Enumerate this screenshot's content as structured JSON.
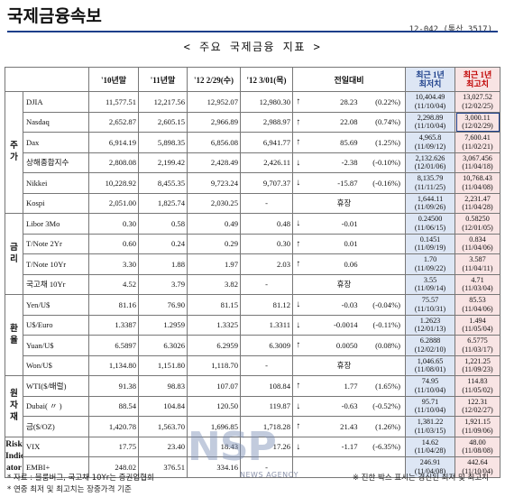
{
  "header": {
    "title": "국제금융속보",
    "issue": "12-042 (통산 3517)",
    "subtitle": "< 주요 국제금융 지표 >"
  },
  "columns": {
    "y10": "'10년말",
    "y11": "'11년말",
    "d229": "'12 2/29(수)",
    "d301": "'12 3/01(목)",
    "change": "전일대비",
    "low": "최근 1년\n최저치",
    "high": "최근 1년\n최고치"
  },
  "groups": {
    "stock": "주\n가",
    "rate": "금\n리",
    "fx": "환\n율",
    "commodity": "원\n자\n재",
    "risk": "Risk\nIndic\nator"
  },
  "rows": [
    {
      "name": "DJIA",
      "y10": "11,577.51",
      "y11": "12,217.56",
      "d229": "12,952.07",
      "d301": "12,980.30",
      "dir": "↑",
      "chg": "28.23",
      "pct": "(0.22%)",
      "low": "10,404.49\n(11/10/04)",
      "high": "13,027.52\n(12/02/25)"
    },
    {
      "name": "Nasdaq",
      "y10": "2,652.87",
      "y11": "2,605.15",
      "d229": "2,966.89",
      "d301": "2,988.97",
      "dir": "↑",
      "chg": "22.08",
      "pct": "(0.74%)",
      "low": "2,298.89\n(11/10/04)",
      "high": "3,000.11\n(12/02/29)",
      "hl": true
    },
    {
      "name": "Dax",
      "y10": "6,914.19",
      "y11": "5,898.35",
      "d229": "6,856.08",
      "d301": "6,941.77",
      "dir": "↑",
      "chg": "85.69",
      "pct": "(1.25%)",
      "low": "4,965.8\n(11/09/12)",
      "high": "7,600.41\n(11/02/21)"
    },
    {
      "name": "상해종합지수",
      "y10": "2,808.08",
      "y11": "2,199.42",
      "d229": "2,428.49",
      "d301": "2,426.11",
      "dir": "↓",
      "chg": "-2.38",
      "pct": "(-0.10%)",
      "low": "2,132.626\n(12/01/06)",
      "high": "3,067.456\n(11/04/18)"
    },
    {
      "name": "Nikkei",
      "y10": "10,228.92",
      "y11": "8,455.35",
      "d229": "9,723.24",
      "d301": "9,707.37",
      "dir": "↓",
      "chg": "-15.87",
      "pct": "(-0.16%)",
      "low": "8,135.79\n(11/11/25)",
      "high": "10,768.43\n(11/04/08)"
    },
    {
      "name": "Kospi",
      "y10": "2,051.00",
      "y11": "1,825.74",
      "d229": "2,030.25",
      "d301": "-",
      "dir": "",
      "chg": "휴장",
      "pct": "",
      "low": "1,644.11\n(11/09/26)",
      "high": "2,231.47\n(11/04/28)"
    },
    {
      "name": "Libor 3Mo",
      "y10": "0.30",
      "y11": "0.58",
      "d229": "0.49",
      "d301": "0.48",
      "dir": "↓",
      "chg": "-0.01",
      "pct": "",
      "low": "0.24500\n(11/06/15)",
      "high": "0.58250\n(12/01/05)"
    },
    {
      "name": "T/Note 2Yr",
      "y10": "0.60",
      "y11": "0.24",
      "d229": "0.29",
      "d301": "0.30",
      "dir": "↑",
      "chg": "0.01",
      "pct": "",
      "low": "0.1451\n(11/09/19)",
      "high": "0.834\n(11/04/06)"
    },
    {
      "name": "T/Note 10Yr",
      "y10": "3.30",
      "y11": "1.88",
      "d229": "1.97",
      "d301": "2.03",
      "dir": "↑",
      "chg": "0.06",
      "pct": "",
      "low": "1.70\n(11/09/22)",
      "high": "3.587\n(11/04/11)"
    },
    {
      "name": "국고채 10Yr",
      "y10": "4.52",
      "y11": "3.79",
      "d229": "3.82",
      "d301": "-",
      "dir": "",
      "chg": "휴장",
      "pct": "",
      "low": "3.55\n(11/09/14)",
      "high": "4.71\n(11/03/04)"
    },
    {
      "name": "Yen/U$",
      "y10": "81.16",
      "y11": "76.90",
      "d229": "81.15",
      "d301": "81.12",
      "dir": "↓",
      "chg": "-0.03",
      "pct": "(-0.04%)",
      "low": "75.57\n(11/10/31)",
      "high": "85.53\n(11/04/06)"
    },
    {
      "name": "U$/Euro",
      "y10": "1.3387",
      "y11": "1.2959",
      "d229": "1.3325",
      "d301": "1.3311",
      "dir": "↓",
      "chg": "-0.0014",
      "pct": "(-0.11%)",
      "low": "1.2623\n(12/01/13)",
      "high": "1.494\n(11/05/04)"
    },
    {
      "name": "Yuan/U$",
      "y10": "6.5897",
      "y11": "6.3026",
      "d229": "6.2959",
      "d301": "6.3009",
      "dir": "↑",
      "chg": "0.0050",
      "pct": "(0.08%)",
      "low": "6.2888\n(12/02/10)",
      "high": "6.5775\n(11/03/17)"
    },
    {
      "name": "Won/U$",
      "y10": "1,134.80",
      "y11": "1,151.80",
      "d229": "1,118.70",
      "d301": "-",
      "dir": "",
      "chg": "휴장",
      "pct": "",
      "low": "1,046.65\n(11/08/01)",
      "high": "1,221.25\n(11/09/23)"
    },
    {
      "name": "WTI($/배럴)",
      "y10": "91.38",
      "y11": "98.83",
      "d229": "107.07",
      "d301": "108.84",
      "dir": "↑",
      "chg": "1.77",
      "pct": "(1.65%)",
      "low": "74.95\n(11/10/04)",
      "high": "114.83\n(11/05/02)"
    },
    {
      "name": "Dubai(   〃   )",
      "y10": "88.54",
      "y11": "104.84",
      "d229": "120.50",
      "d301": "119.87",
      "dir": "↓",
      "chg": "-0.63",
      "pct": "(-0.52%)",
      "low": "95.71\n(11/10/04)",
      "high": "122.31\n(12/02/27)"
    },
    {
      "name": "금($/OZ)",
      "y10": "1,420.78",
      "y11": "1,563.70",
      "d229": "1,696.85",
      "d301": "1,718.28",
      "dir": "↑",
      "chg": "21.43",
      "pct": "(1.26%)",
      "low": "1,381.22\n(11/03/15)",
      "high": "1,921.15\n(11/09/06)"
    },
    {
      "name": "VIX",
      "y10": "17.75",
      "y11": "23.40",
      "d229": "18.43",
      "d301": "17.26",
      "dir": "↓",
      "chg": "-1.17",
      "pct": "(-6.35%)",
      "low": "14.62\n(11/04/28)",
      "high": "48.00\n(11/08/08)"
    },
    {
      "name": "EMBI+",
      "y10": "248.02",
      "y11": "376.51",
      "d229": "334.16",
      "d301": "-",
      "dir": "",
      "chg": "",
      "pct": "",
      "low": "246.91\n(11/04/08)",
      "high": "442.64\n(11/10/04)"
    }
  ],
  "footer": {
    "line1": "* 자료 : 블룸버그, 국고채 10Yr는 증권업협회",
    "line2": "* 연중 최저 및 최고치는 장중가격 기준",
    "note": "※ 진한 박스 표시는 경신된 최저 및 최고치"
  },
  "watermark": {
    "logo": "NSP",
    "sub": "NEWS AGENCY"
  }
}
